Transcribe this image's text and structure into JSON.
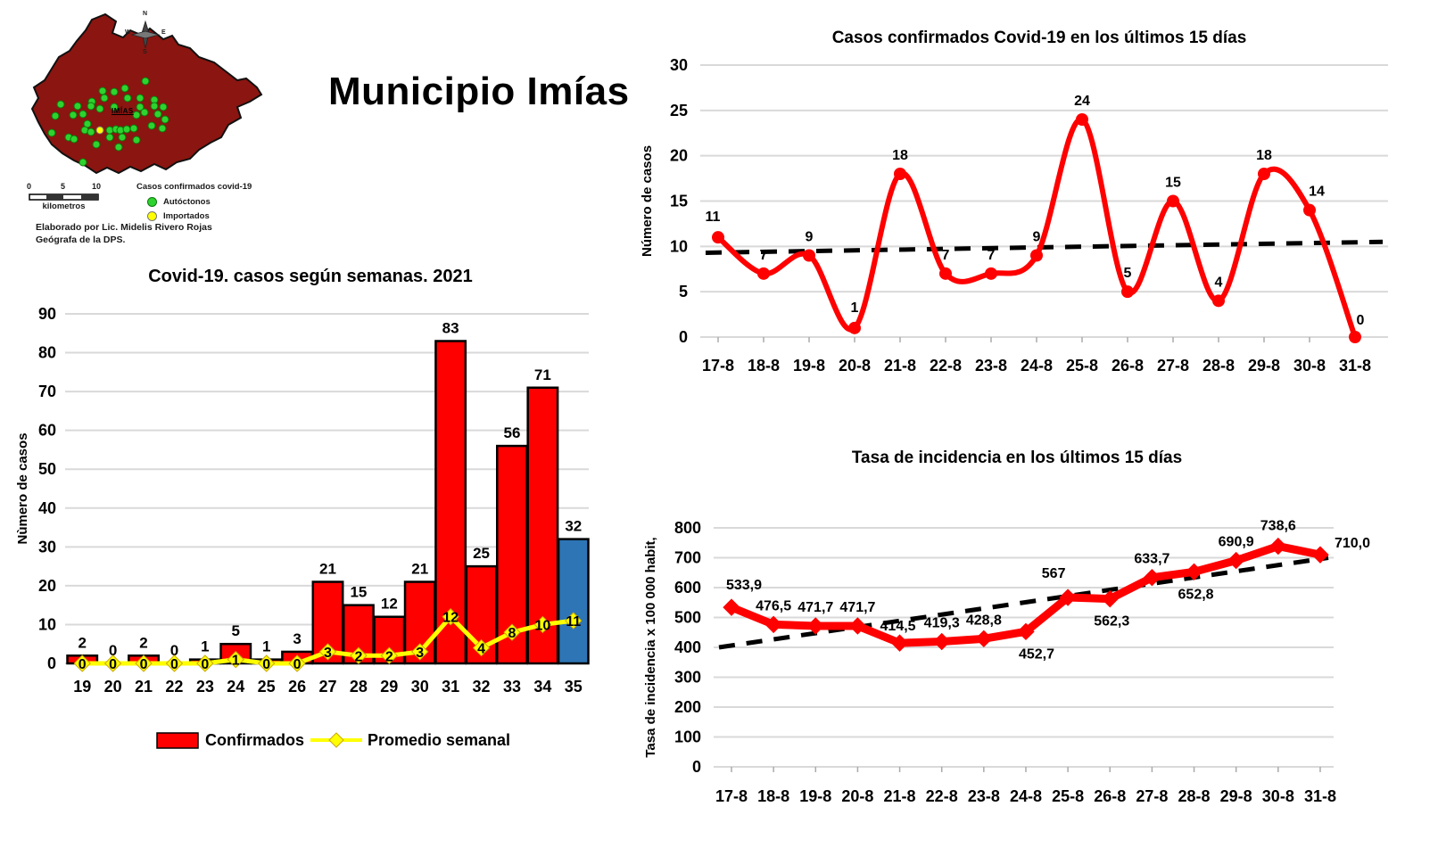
{
  "header": {
    "title": "Municipio Imías"
  },
  "map": {
    "region_label": "IMÍAS",
    "compass": {
      "north": "N",
      "south": "S",
      "east": "E",
      "west": "W"
    },
    "scale_bar": {
      "tick0": "0",
      "tick1": "5",
      "tick2": "10",
      "unit": "kilometros"
    },
    "legend": {
      "title": "Casos confirmados covid-19",
      "autoctonos_label": "Autóctonos",
      "importados_label": "Importados"
    },
    "credit": {
      "line1": "Elaborado por Lic. Midelis Rivero Rojas",
      "line2": "Geógrafa de la DPS."
    },
    "colors": {
      "region_fill": "#8b1510",
      "region_outline": "#111111",
      "autoctonos": "#2fd32f",
      "importados": "#ffff00"
    },
    "case_dots": {
      "autoctonos": [
        [
          155,
          89
        ],
        [
          107,
          100
        ],
        [
          120,
          101
        ],
        [
          132,
          97
        ],
        [
          135,
          108
        ],
        [
          149,
          108
        ],
        [
          165,
          110
        ],
        [
          109,
          108
        ],
        [
          95,
          112
        ],
        [
          60,
          115
        ],
        [
          79,
          117
        ],
        [
          94,
          117
        ],
        [
          104,
          120
        ],
        [
          120,
          118
        ],
        [
          149,
          118
        ],
        [
          165,
          117
        ],
        [
          175,
          118
        ],
        [
          54,
          128
        ],
        [
          74,
          127
        ],
        [
          85,
          126
        ],
        [
          145,
          127
        ],
        [
          154,
          124
        ],
        [
          169,
          126
        ],
        [
          177,
          132
        ],
        [
          90,
          137
        ],
        [
          162,
          139
        ],
        [
          174,
          142
        ],
        [
          50,
          147
        ],
        [
          69,
          152
        ],
        [
          75,
          154
        ],
        [
          87,
          144
        ],
        [
          94,
          146
        ],
        [
          115,
          144
        ],
        [
          122,
          143
        ],
        [
          127,
          144
        ],
        [
          134,
          143
        ],
        [
          142,
          142
        ],
        [
          145,
          155
        ],
        [
          100,
          160
        ],
        [
          125,
          163
        ],
        [
          85,
          180
        ],
        [
          115,
          152
        ],
        [
          129,
          152
        ]
      ],
      "importados": [
        [
          104,
          144
        ]
      ]
    }
  },
  "chart_data": [
    {
      "type": "bar",
      "title": "Covid-19. casos según semanas. 2021",
      "ylabel": "Nùmero de casos",
      "xlabel": "",
      "categories": [
        "19",
        "20",
        "21",
        "22",
        "23",
        "24",
        "25",
        "26",
        "27",
        "28",
        "29",
        "30",
        "31",
        "32",
        "33",
        "34",
        "35"
      ],
      "series": [
        {
          "name": "Confirmados",
          "type": "bar",
          "values": [
            2,
            0,
            2,
            0,
            1,
            5,
            1,
            3,
            21,
            15,
            12,
            21,
            83,
            25,
            56,
            71,
            32
          ],
          "color": "#ff0000",
          "last_bar_color": "#2e75b6",
          "outline": "#000000"
        },
        {
          "name": "Promedio semanal",
          "type": "line",
          "values": [
            0,
            0,
            0,
            0,
            0,
            1,
            0,
            0,
            3,
            2,
            2,
            3,
            12,
            4,
            8,
            10,
            11
          ],
          "color": "#ffff00"
        }
      ],
      "ylim": [
        0,
        90
      ],
      "ytick_step": 10,
      "grid": true,
      "grid_color": "#d9d9d9",
      "legend_position": "bottom"
    },
    {
      "type": "line",
      "title": "Casos confirmados  Covid-19 en los últimos 15 días",
      "ylabel": "Número de casos",
      "xlabel": "",
      "categories": [
        "17-8",
        "18-8",
        "19-8",
        "20-8",
        "21-8",
        "22-8",
        "23-8",
        "24-8",
        "25-8",
        "26-8",
        "27-8",
        "28-8",
        "29-8",
        "30-8",
        "31-8"
      ],
      "values": [
        11,
        7,
        9,
        1,
        18,
        7,
        7,
        9,
        24,
        5,
        15,
        4,
        18,
        14,
        0
      ],
      "color": "#ff0000",
      "trendline": {
        "style": "dashed",
        "color": "#000000",
        "start_value": 9.3,
        "end_value": 10.5
      },
      "ylim": [
        0,
        30
      ],
      "ytick_step": 5,
      "grid": true,
      "grid_color": "#d9d9d9",
      "smooth": true
    },
    {
      "type": "line",
      "title": "Tasa de incidencia en los últimos 15 días",
      "ylabel": "Tasa de incidencia x 100 000 habit,",
      "xlabel": "",
      "categories": [
        "17-8",
        "18-8",
        "19-8",
        "20-8",
        "21-8",
        "22-8",
        "23-8",
        "24-8",
        "25-8",
        "26-8",
        "27-8",
        "28-8",
        "29-8",
        "30-8",
        "31-8"
      ],
      "values": [
        533.9,
        476.5,
        471.7,
        471.7,
        414.5,
        419.3,
        428.8,
        452.7,
        567,
        562.3,
        633.7,
        652.8,
        690.9,
        738.6,
        710.0
      ],
      "point_labels": [
        "533,9",
        "476,5",
        "471,7",
        "471,7",
        "414,5",
        "419,3",
        "428,8",
        "452,7",
        "567",
        "562,3",
        "633,7",
        "652,8",
        "690,9",
        "738,6",
        "710,0"
      ],
      "color": "#ff0000",
      "trendline": {
        "style": "dashed",
        "color": "#000000",
        "start_value": 400,
        "end_value": 700
      },
      "ylim": [
        0,
        800
      ],
      "ytick_step": 100,
      "grid": true,
      "grid_color": "#d9d9d9",
      "smooth": false
    }
  ]
}
